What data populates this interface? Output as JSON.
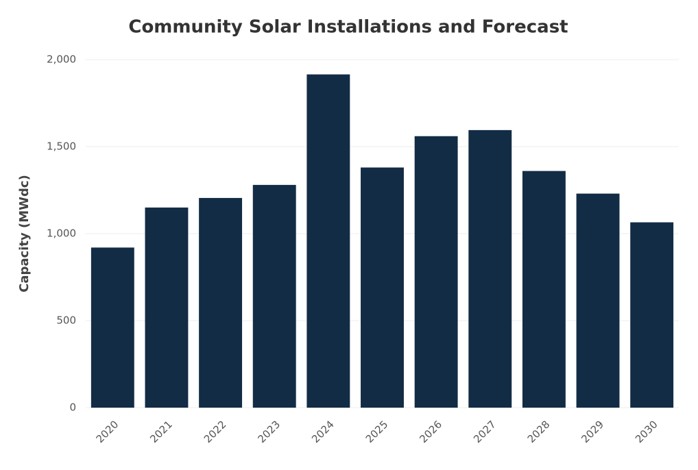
{
  "chart_data": {
    "type": "bar",
    "title": "Community Solar Installations and Forecast",
    "y_label": "Capacity (MWdc)",
    "categories": [
      "2020",
      "2021",
      "2022",
      "2023",
      "2024",
      "2025",
      "2026",
      "2027",
      "2028",
      "2029",
      "2030"
    ],
    "values": [
      920,
      1150,
      1205,
      1280,
      1915,
      1380,
      1560,
      1595,
      1360,
      1230,
      1065
    ],
    "color": "#132c45",
    "ylim": [
      0,
      2000
    ],
    "yticks": [
      0,
      500,
      {
        "value": 1000,
        "label": "1,000"
      },
      {
        "value": 1500,
        "label": "1,500"
      },
      {
        "value": 2000,
        "label": "2,000"
      }
    ],
    "grid": true
  }
}
